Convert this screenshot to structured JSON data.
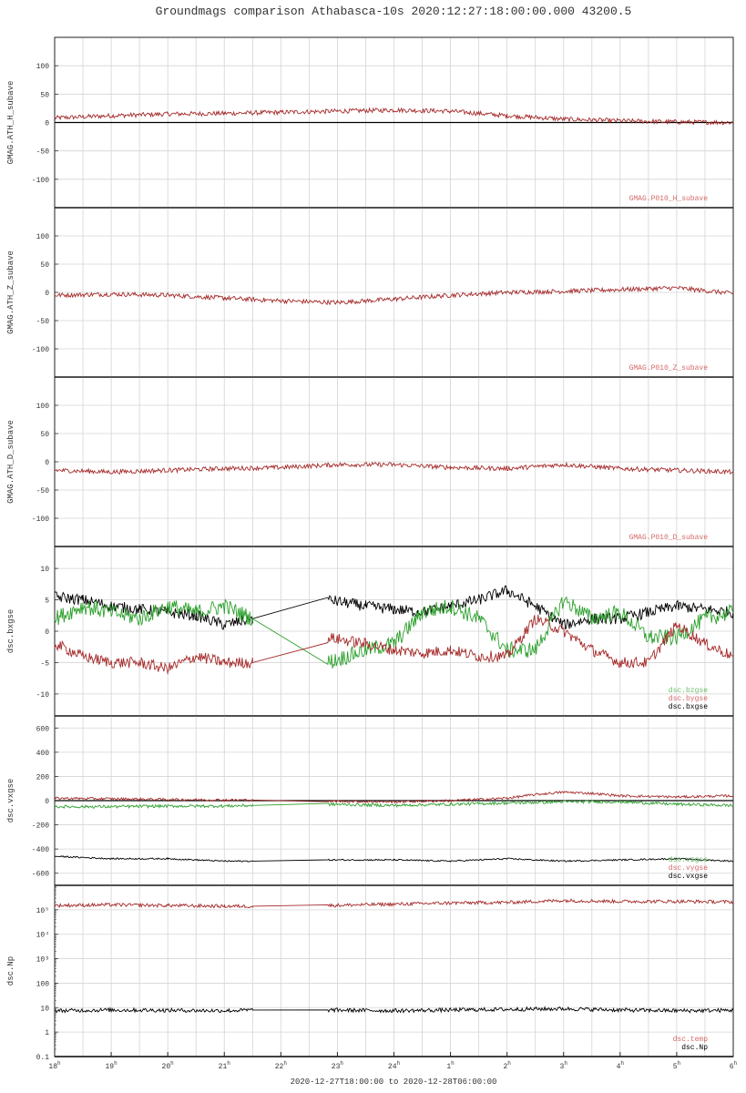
{
  "page": {
    "title": "Groundmags comparison Athabasca-10s 2020:12:27:18:00:00.000 43200.5",
    "xlabel": "2020-12-27T18:00:00 to 2020-12-28T06:00:00"
  },
  "colors": {
    "red": "#a52a2a",
    "green": "#2ca02c",
    "black": "#000000",
    "legend_red": "#d46a6a",
    "legend_green": "#6ac06a",
    "grid": "#d4d4d4"
  },
  "chart_data": [
    {
      "type": "line",
      "ylabel": "GMAG.ATH_H_subave",
      "ylim": [
        -150,
        150
      ],
      "yticks": [
        100,
        50,
        0,
        -50,
        -100
      ],
      "ytick_labels": [
        "100",
        "50",
        "0",
        "-50",
        "-100"
      ],
      "zero_line": true,
      "legend": [
        "GMAG.P010_H_subave"
      ],
      "series": [
        {
          "color": "red",
          "noise": 4,
          "x": [
            0,
            1,
            2,
            3,
            4,
            5,
            6,
            7,
            8,
            9,
            10,
            11,
            12
          ],
          "y": [
            8,
            12,
            15,
            16,
            18,
            20,
            22,
            20,
            12,
            6,
            3,
            1,
            0
          ]
        }
      ]
    },
    {
      "type": "line",
      "ylabel": "GMAG.ATH_Z_subave",
      "ylim": [
        -150,
        150
      ],
      "yticks": [
        100,
        50,
        0,
        -50,
        -100
      ],
      "ytick_labels": [
        "100",
        "50",
        "0",
        "-50",
        "-100"
      ],
      "legend": [
        "GMAG.P010_Z_subave"
      ],
      "series": [
        {
          "color": "red",
          "noise": 4,
          "x": [
            0,
            1,
            2,
            3,
            4,
            5,
            6,
            7,
            8,
            9,
            10,
            11,
            12
          ],
          "y": [
            -5,
            -3,
            -5,
            -10,
            -15,
            -18,
            -12,
            -5,
            0,
            2,
            5,
            8,
            -2
          ]
        }
      ]
    },
    {
      "type": "line",
      "ylabel": "GMAG.ATH_D_subave",
      "ylim": [
        -150,
        150
      ],
      "yticks": [
        100,
        50,
        0,
        -50,
        -100
      ],
      "ytick_labels": [
        "100",
        "50",
        "0",
        "-50",
        "-100"
      ],
      "legend": [
        "GMAG.P010_D_subave"
      ],
      "series": [
        {
          "color": "red",
          "noise": 4,
          "x": [
            0,
            1,
            2,
            3,
            4,
            5,
            6,
            7,
            8,
            9,
            10,
            11,
            12
          ],
          "y": [
            -15,
            -18,
            -15,
            -12,
            -10,
            -5,
            -5,
            -10,
            -12,
            -5,
            -12,
            -15,
            -18
          ]
        }
      ]
    },
    {
      "type": "line",
      "ylabel": "dsc.bxgse",
      "ylim": [
        -13.5,
        13.5
      ],
      "yticks": [
        10,
        5,
        0,
        -5,
        -10
      ],
      "ytick_labels": [
        "10",
        "5",
        "0",
        "-5",
        "-10"
      ],
      "legend": [
        "dsc.bzgse",
        "dsc.bygse",
        "dsc.bxgse"
      ],
      "legend_colors": [
        "green",
        "red",
        "black"
      ],
      "series": [
        {
          "color": "black",
          "noise": 0.9,
          "x": [
            0,
            0.5,
            1,
            1.5,
            2,
            2.5,
            3,
            3.5,
            4.83,
            5.5,
            6,
            6.5,
            7,
            7.5,
            8,
            8.5,
            9,
            9.5,
            10,
            10.5,
            11,
            11.5,
            12
          ],
          "y": [
            5.5,
            5,
            4,
            3.5,
            3,
            2.5,
            1,
            2,
            5,
            4,
            3.5,
            3,
            4,
            5,
            6.5,
            4,
            1,
            2,
            2,
            3,
            4,
            3.5,
            3
          ]
        },
        {
          "color": "green",
          "noise": 1.3,
          "x": [
            0,
            0.5,
            1,
            1.5,
            2,
            2.5,
            3,
            3.5,
            4.83,
            5.5,
            6,
            6.5,
            7,
            7.5,
            8,
            8.5,
            9,
            9.5,
            10,
            10.5,
            11,
            11.5,
            12
          ],
          "y": [
            2,
            4,
            3,
            2,
            4,
            3,
            4,
            2,
            -5,
            -3,
            -2,
            3,
            4,
            2,
            -3,
            -3,
            5,
            2,
            3,
            -1,
            -1,
            2,
            3
          ]
        },
        {
          "color": "red",
          "noise": 0.9,
          "x": [
            0,
            0.5,
            1,
            1.5,
            2,
            2.5,
            3,
            3.5,
            4.83,
            5.5,
            6,
            6.5,
            7,
            7.5,
            8,
            8.5,
            9,
            9.5,
            10,
            10.5,
            11,
            11.5,
            12
          ],
          "y": [
            -2,
            -4,
            -5,
            -5,
            -6,
            -4,
            -5,
            -5,
            -1,
            -2,
            -3,
            -3.5,
            -3,
            -4,
            -4,
            2,
            0,
            -3,
            -5,
            -5,
            1,
            -2,
            -4
          ]
        }
      ]
    },
    {
      "type": "line",
      "ylabel": "dsc.vxgse",
      "ylim": [
        -700,
        700
      ],
      "yticks": [
        600,
        400,
        200,
        0,
        -200,
        -400,
        -600
      ],
      "ytick_labels": [
        "600",
        "400",
        "200",
        "0",
        "-200",
        "-400",
        "-600"
      ],
      "zero_line": true,
      "legend": [
        "dsc.vzgse",
        "dsc.vygse",
        "dsc.vxgse"
      ],
      "legend_colors": [
        "green",
        "red",
        "black"
      ],
      "series": [
        {
          "color": "red",
          "noise": 10,
          "x": [
            0,
            1,
            2,
            3,
            3.5,
            4.83,
            6,
            7,
            8,
            8.5,
            9,
            9.5,
            10,
            11,
            12
          ],
          "y": [
            20,
            15,
            10,
            5,
            5,
            -5,
            -10,
            0,
            20,
            50,
            70,
            60,
            40,
            30,
            40
          ]
        },
        {
          "color": "green",
          "noise": 12,
          "x": [
            0,
            1,
            2,
            3,
            3.5,
            4.83,
            6,
            7,
            8,
            9,
            10,
            11,
            12
          ],
          "y": [
            -50,
            -50,
            -45,
            -45,
            -40,
            -30,
            -40,
            -30,
            -20,
            -10,
            -10,
            -30,
            -40
          ]
        },
        {
          "color": "black",
          "noise": 6,
          "x": [
            0,
            1,
            2,
            3,
            3.5,
            4.83,
            6,
            7,
            8,
            9,
            10,
            11,
            12
          ],
          "y": [
            -460,
            -480,
            -480,
            -500,
            -500,
            -490,
            -490,
            -500,
            -480,
            -500,
            -490,
            -480,
            -500
          ]
        }
      ]
    },
    {
      "type": "line",
      "ylabel": "dsc.Np",
      "yscale": "log",
      "ylim": [
        0.1,
        1000000
      ],
      "yticks": [
        0.1,
        1,
        10,
        100,
        1000,
        10000,
        100000
      ],
      "ytick_labels": [
        "0.1",
        "1",
        "10",
        "100",
        "10³",
        "10⁴",
        "10⁵"
      ],
      "legend": [
        "dsc.temp",
        "dsc.Np"
      ],
      "legend_colors": [
        "red",
        "black"
      ],
      "series": [
        {
          "color": "red",
          "noise": 0.07,
          "x": [
            0,
            1,
            2,
            3,
            3.5,
            4.83,
            6,
            7,
            8,
            9,
            10,
            11,
            12
          ],
          "y": [
            150000,
            160000,
            150000,
            140000,
            140000,
            150000,
            170000,
            190000,
            200000,
            240000,
            220000,
            220000,
            210000
          ]
        },
        {
          "color": "black",
          "noise": 0.08,
          "x": [
            0,
            1,
            2,
            3,
            3.5,
            4.83,
            6,
            7,
            8,
            9,
            10,
            11,
            12
          ],
          "y": [
            7.5,
            8,
            7.8,
            7.5,
            8,
            8,
            7.5,
            8,
            8.5,
            9,
            8,
            7.5,
            7.8
          ]
        }
      ]
    }
  ],
  "xaxis": {
    "xlim": [
      0,
      12
    ],
    "major_ticks": [
      0,
      1,
      2,
      3,
      4,
      5,
      6,
      7,
      8,
      9,
      10,
      11,
      12
    ],
    "hours": [
      "18",
      "19",
      "20",
      "21",
      "22",
      "23",
      "24",
      "1",
      "2",
      "3",
      "4",
      "5",
      "6"
    ],
    "hour_suffix": "h"
  }
}
